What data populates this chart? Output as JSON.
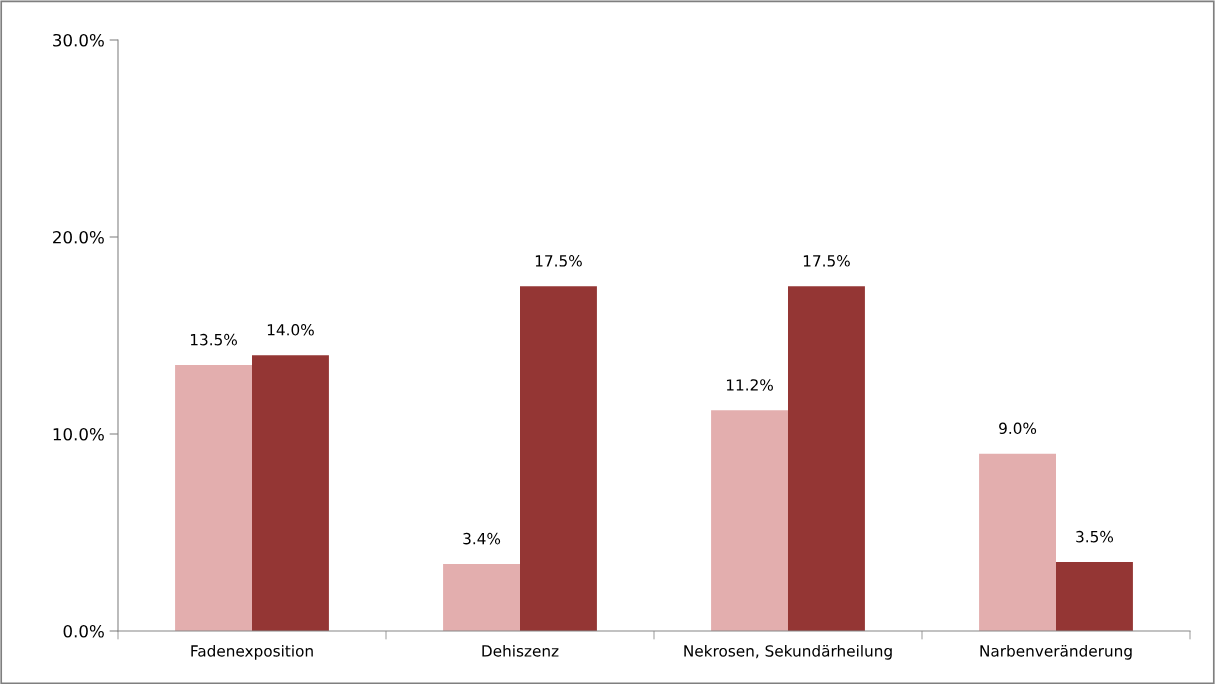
{
  "chart_data": {
    "type": "bar",
    "categories": [
      "Fadenexposition",
      "Dehiszenz",
      "Nekrosen, Sekundärheilung",
      "Narbenveränderung"
    ],
    "series": [
      {
        "color": "#e3aeae",
        "values": [
          13.5,
          3.4,
          11.2,
          9.0
        ],
        "value_labels": [
          "13.5%",
          "3.4%",
          "11.2%",
          "9.0%"
        ]
      },
      {
        "color": "#943634",
        "values": [
          14.0,
          17.5,
          17.5,
          3.5
        ],
        "value_labels": [
          "14.0%",
          "17.5%",
          "17.5%",
          "3.5%"
        ]
      }
    ],
    "ylim": [
      0,
      30
    ],
    "yticks": [
      {
        "value": 0,
        "label": "0.0%"
      },
      {
        "value": 10,
        "label": "10.0%"
      },
      {
        "value": 20,
        "label": "20.0%"
      },
      {
        "value": 30,
        "label": "30.0%"
      }
    ],
    "grid": false
  }
}
